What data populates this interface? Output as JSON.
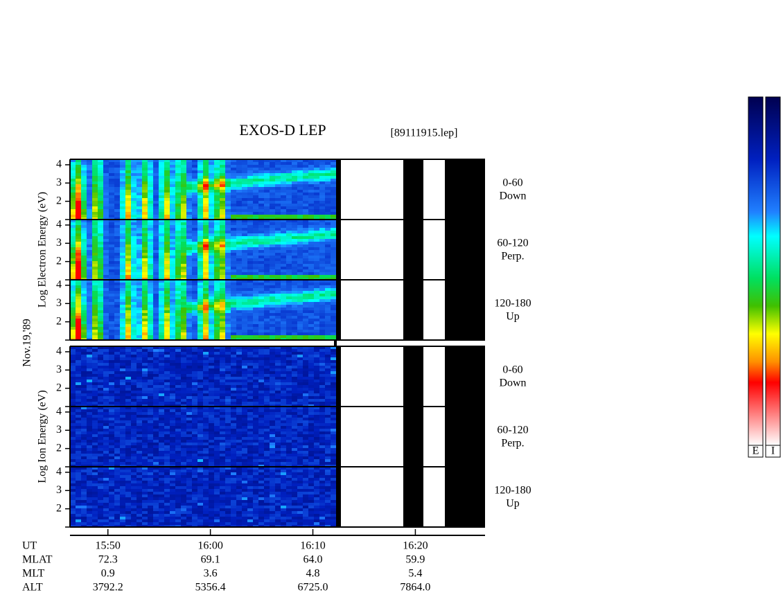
{
  "chart_data": {
    "type": "spectrogram",
    "title": "EXOS-D LEP",
    "file": "[89111915.lep]",
    "date": "Nov.19,'89",
    "groups": [
      {
        "axis_label": "Log Electron Energy (eV)",
        "panels": [
          [
            "0-60",
            "Down"
          ],
          [
            "60-120",
            "Perp."
          ],
          [
            "120-180",
            "Up"
          ]
        ]
      },
      {
        "axis_label": "Log Ion Energy (eV)",
        "panels": [
          [
            "0-60",
            "Down"
          ],
          [
            "60-120",
            "Perp."
          ],
          [
            "120-180",
            "Up"
          ]
        ]
      }
    ],
    "ylim": [
      1,
      4.3
    ],
    "yticks": [
      2,
      3,
      4
    ],
    "xlim": [
      946.3,
      986.8
    ],
    "xticks": [
      {
        "value": 950,
        "label": "15:50"
      },
      {
        "value": 960,
        "label": "16:00"
      },
      {
        "value": 970,
        "label": "16:10"
      },
      {
        "value": 980,
        "label": "16:20"
      }
    ],
    "ephemeris": [
      {
        "name": "UT"
      },
      {
        "name": "MLAT",
        "values": [
          "72.3",
          "69.1",
          "64.0",
          "59.9"
        ]
      },
      {
        "name": "MLT",
        "values": [
          "0.9",
          "3.6",
          "4.8",
          "5.4"
        ]
      },
      {
        "name": "ALT",
        "values": [
          "3792.2",
          "5356.4",
          "6725.0",
          "7864.0"
        ]
      }
    ],
    "colorbars": [
      "E",
      "I"
    ]
  }
}
